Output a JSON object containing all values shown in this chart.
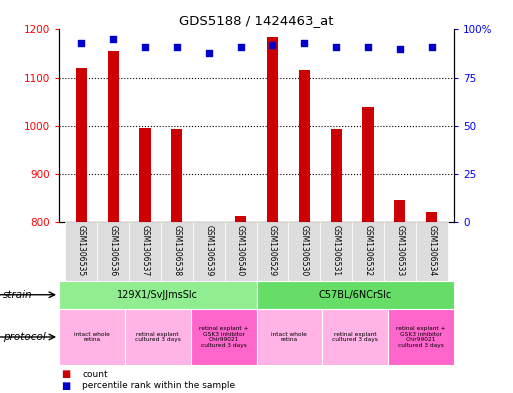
{
  "title": "GDS5188 / 1424463_at",
  "samples": [
    "GSM1306535",
    "GSM1306536",
    "GSM1306537",
    "GSM1306538",
    "GSM1306539",
    "GSM1306540",
    "GSM1306529",
    "GSM1306530",
    "GSM1306531",
    "GSM1306532",
    "GSM1306533",
    "GSM1306534"
  ],
  "counts": [
    1120,
    1155,
    995,
    993,
    800,
    812,
    1185,
    1115,
    993,
    1040,
    845,
    820
  ],
  "percentiles": [
    93,
    95,
    91,
    91,
    88,
    91,
    92,
    93,
    91,
    91,
    90,
    91
  ],
  "ylim_left": [
    800,
    1200
  ],
  "ylim_right": [
    0,
    100
  ],
  "yticks_left": [
    800,
    900,
    1000,
    1100,
    1200
  ],
  "yticks_right": [
    0,
    25,
    50,
    75,
    100
  ],
  "bar_color": "#cc0000",
  "dot_color": "#0000cc",
  "strain_groups": [
    {
      "label": "129X1/SvJJmsSlc",
      "start": 0,
      "end": 5,
      "color": "#90ee90"
    },
    {
      "label": "C57BL/6NCrSlc",
      "start": 6,
      "end": 11,
      "color": "#66dd66"
    }
  ],
  "protocol_groups": [
    {
      "label": "intact whole\nretina",
      "start": 0,
      "end": 1,
      "color": "#ffb3e6"
    },
    {
      "label": "retinal explant\ncultured 3 days",
      "start": 2,
      "end": 3,
      "color": "#ffb3e6"
    },
    {
      "label": "retinal explant +\nGSK3 inhibitor\nChir99021\ncultured 3 days",
      "start": 4,
      "end": 5,
      "color": "#ff66cc"
    },
    {
      "label": "intact whole\nretina",
      "start": 6,
      "end": 7,
      "color": "#ffb3e6"
    },
    {
      "label": "retinal explant\ncultured 3 days",
      "start": 8,
      "end": 9,
      "color": "#ffb3e6"
    },
    {
      "label": "retinal explant +\nGSK3 inhibitor\nChir99021\ncultured 3 days",
      "start": 10,
      "end": 11,
      "color": "#ff66cc"
    }
  ]
}
